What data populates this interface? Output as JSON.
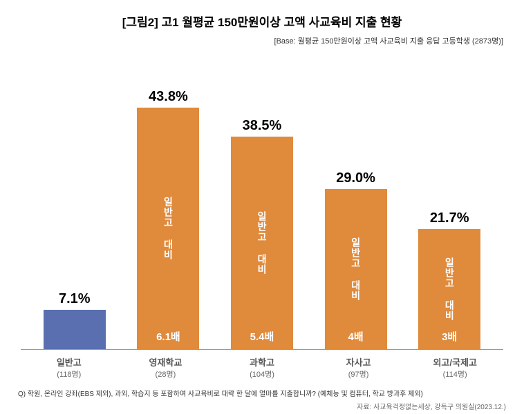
{
  "title": "[그림2] 고1 월평균 150만원이상 고액 사교육비 지출 현황",
  "subtitle": "[Base: 월평균 150만원이상 고액 사교육비 지출 응답 고등학생 (2873명)]",
  "chart": {
    "type": "bar",
    "ylim": [
      0,
      50
    ],
    "background_color": "#ffffff",
    "bars": [
      {
        "category": "일반고",
        "count": "(118명)",
        "value": 7.1,
        "value_label": "7.1%",
        "color": "#5a6fb0",
        "inner_text": "",
        "multiplier": ""
      },
      {
        "category": "영재학교",
        "count": "(28명)",
        "value": 43.8,
        "value_label": "43.8%",
        "color": "#e08a3c",
        "inner_text": "일반고 대비",
        "multiplier": "6.1배"
      },
      {
        "category": "과학고",
        "count": "(104명)",
        "value": 38.5,
        "value_label": "38.5%",
        "color": "#e08a3c",
        "inner_text": "일반고 대비",
        "multiplier": "5.4배"
      },
      {
        "category": "자사고",
        "count": "(97명)",
        "value": 29.0,
        "value_label": "29.0%",
        "color": "#e08a3c",
        "inner_text": "일반고 대비",
        "multiplier": "4배"
      },
      {
        "category": "외고/국제고",
        "count": "(114명)",
        "value": 21.7,
        "value_label": "21.7%",
        "color": "#e08a3c",
        "inner_text": "일반고 대비",
        "multiplier": "3배"
      }
    ]
  },
  "question": "Q) 학원, 온라인 강좌(EBS 제외), 과외, 학습지 등 포함하여 사교육비로 대략 한 달에 얼마를 지출합니까?  (예체능 및 컴퓨터, 학교 방과후 제외)",
  "source": "자료: 사교육걱정없는세상, 강득구 의원실(2023.12.)"
}
